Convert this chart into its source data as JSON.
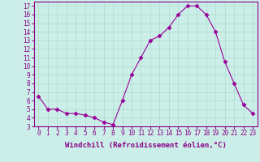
{
  "x": [
    0,
    1,
    2,
    3,
    4,
    5,
    6,
    7,
    8,
    9,
    10,
    11,
    12,
    13,
    14,
    15,
    16,
    17,
    18,
    19,
    20,
    21,
    22,
    23
  ],
  "y": [
    6.5,
    5.0,
    5.0,
    4.5,
    4.5,
    4.3,
    4.0,
    3.5,
    3.2,
    6.0,
    9.0,
    11.0,
    13.0,
    13.5,
    14.5,
    16.0,
    17.0,
    17.0,
    16.0,
    14.0,
    10.5,
    8.0,
    5.5,
    4.5
  ],
  "line_color": "#990099",
  "marker": "D",
  "marker_size": 2.5,
  "bg_color": "#cceee8",
  "grid_color": "#aaddcc",
  "xlabel": "Windchill (Refroidissement éolien,°C)",
  "ylabel": "",
  "xlim": [
    -0.5,
    23.5
  ],
  "ylim": [
    3,
    17.5
  ],
  "yticks": [
    3,
    4,
    5,
    6,
    7,
    8,
    9,
    10,
    11,
    12,
    13,
    14,
    15,
    16,
    17
  ],
  "xticks": [
    0,
    1,
    2,
    3,
    4,
    5,
    6,
    7,
    8,
    9,
    10,
    11,
    12,
    13,
    14,
    15,
    16,
    17,
    18,
    19,
    20,
    21,
    22,
    23
  ],
  "tick_label_fontsize": 5.5,
  "xlabel_fontsize": 6.5,
  "spine_color": "#880088",
  "text_color": "#880088"
}
